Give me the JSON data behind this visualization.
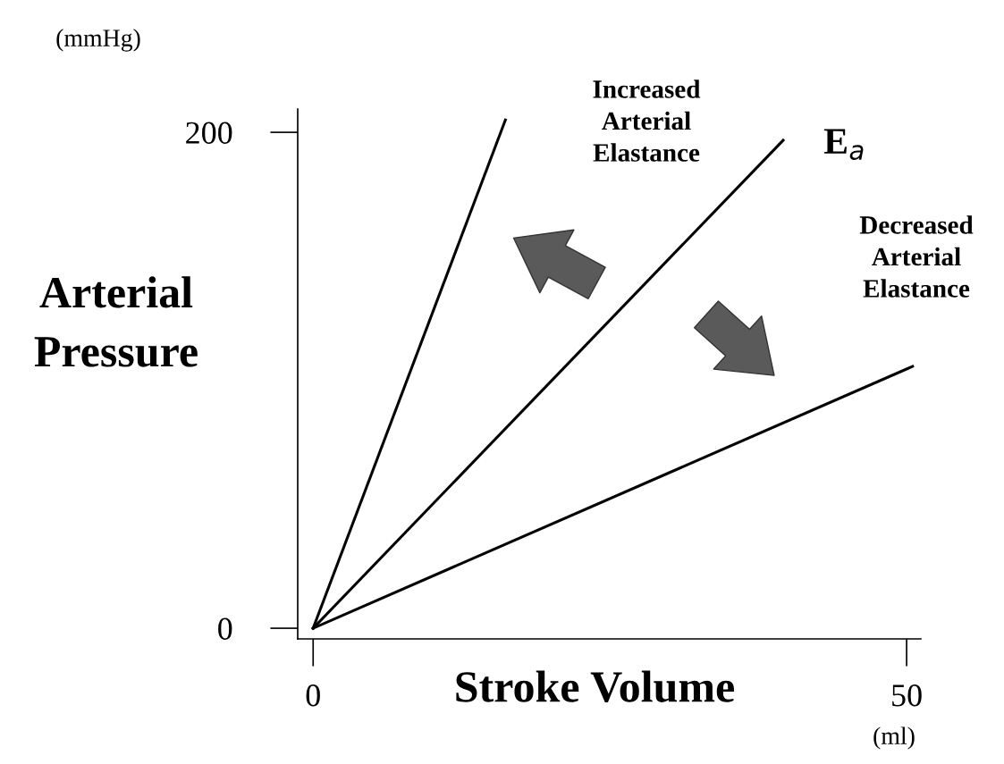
{
  "chart_data": {
    "type": "line",
    "xlabel": "Stroke Volume",
    "ylabel": "Arterial\nPressure",
    "xlim": [
      -1.3,
      51.2
    ],
    "ylim": [
      -4.3,
      209.4
    ],
    "xticks": [
      0,
      50
    ],
    "yticks": [
      0,
      200
    ],
    "grid": false,
    "legend": false,
    "marker": "none",
    "line_style": "solid",
    "series": [
      {
        "color": "#000000",
        "x": [
          0,
          16.2
        ],
        "values": [
          0,
          205
        ]
      },
      {
        "color": "#000000",
        "x": [
          0,
          39.6
        ],
        "values": [
          0,
          196.8
        ]
      },
      {
        "color": "#000000",
        "x": [
          0,
          50.5
        ],
        "values": [
          0,
          105.6
        ]
      }
    ],
    "annotations": [
      "(mmHg)",
      "Increased\nArterial\nElastance",
      "E$_{a}$",
      "Decreased\nArterial\nElastance",
      "(ml)"
    ]
  }
}
